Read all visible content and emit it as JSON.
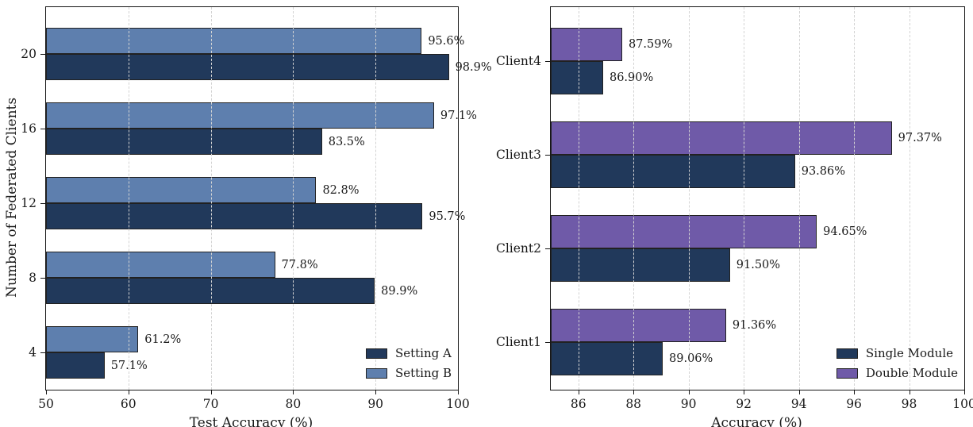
{
  "figure": {
    "background": "#ffffff"
  },
  "chart_data": [
    {
      "type": "bar",
      "orientation": "horizontal",
      "title": "",
      "xlabel": "Test Accuracy (%)",
      "ylabel": "Number of Federated Clients",
      "categories": [
        "4",
        "8",
        "12",
        "16",
        "20"
      ],
      "series": [
        {
          "name": "Setting A",
          "color": "#21395B",
          "values": [
            57.1,
            89.9,
            95.7,
            83.5,
            98.9
          ],
          "labels": [
            "57.1%",
            "89.9%",
            "95.7%",
            "83.5%",
            "98.9%"
          ]
        },
        {
          "name": "Setting B",
          "color": "#5E7FAE",
          "values": [
            61.2,
            77.8,
            82.8,
            97.1,
            95.6
          ],
          "labels": [
            "61.2%",
            "77.8%",
            "82.8%",
            "97.1%",
            "95.6%"
          ]
        }
      ],
      "xlim": [
        50,
        100
      ],
      "xticks": [
        50,
        60,
        70,
        80,
        90,
        100
      ],
      "grid": "vertical-dashed",
      "grid_color": "#d3d3d3",
      "bar_edge_color": "#212121",
      "legend_position": "lower right"
    },
    {
      "type": "bar",
      "orientation": "horizontal",
      "title": "",
      "xlabel": "Accuracy (%)",
      "ylabel": "",
      "categories": [
        "Client1",
        "Client2",
        "Client3",
        "Client4"
      ],
      "series": [
        {
          "name": "Single Module",
          "color": "#21395B",
          "values": [
            89.06,
            91.5,
            93.86,
            86.9
          ],
          "labels": [
            "89.06%",
            "91.50%",
            "93.86%",
            "86.90%"
          ]
        },
        {
          "name": "Double Module",
          "color": "#6F5AA8",
          "values": [
            91.36,
            94.65,
            97.37,
            87.59
          ],
          "labels": [
            "91.36%",
            "94.65%",
            "97.37%",
            "87.59%"
          ]
        }
      ],
      "xlim": [
        85,
        100
      ],
      "xticks": [
        86,
        88,
        90,
        92,
        94,
        96,
        98,
        100
      ],
      "grid": "vertical-dashed",
      "grid_color": "#d3d3d3",
      "bar_edge_color": "#212121",
      "legend_position": "lower right"
    }
  ]
}
